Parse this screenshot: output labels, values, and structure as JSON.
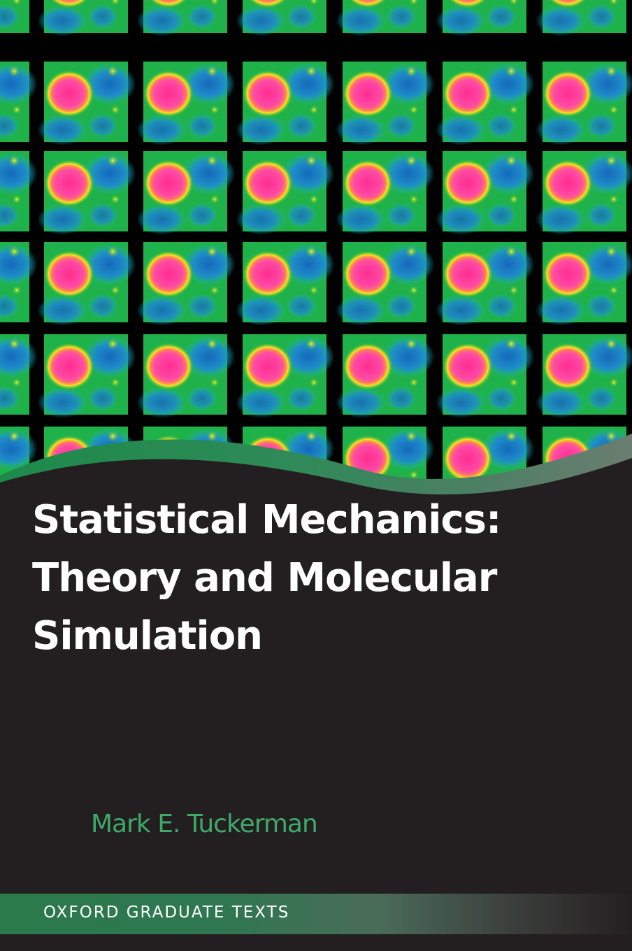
{
  "cover": {
    "title_lines": [
      "Statistical Mechanics:",
      "Theory and Molecular",
      "Simulation"
    ],
    "author": "Mark E. Tuckerman",
    "series": "OXFORD GRADUATE TEXTS"
  },
  "colors": {
    "background": "#231f20",
    "grid_lines": "#000000",
    "tile_green": "#1fb24a",
    "tile_blue": "#1e7fd0",
    "tile_cyan": "#1fb8b0",
    "blob_magenta": "#ff3fa0",
    "blob_ring_yellow": "#f0e020",
    "author_text": "#3fa96a",
    "series_band": "#2a7a4c",
    "title_text": "#ffffff"
  }
}
